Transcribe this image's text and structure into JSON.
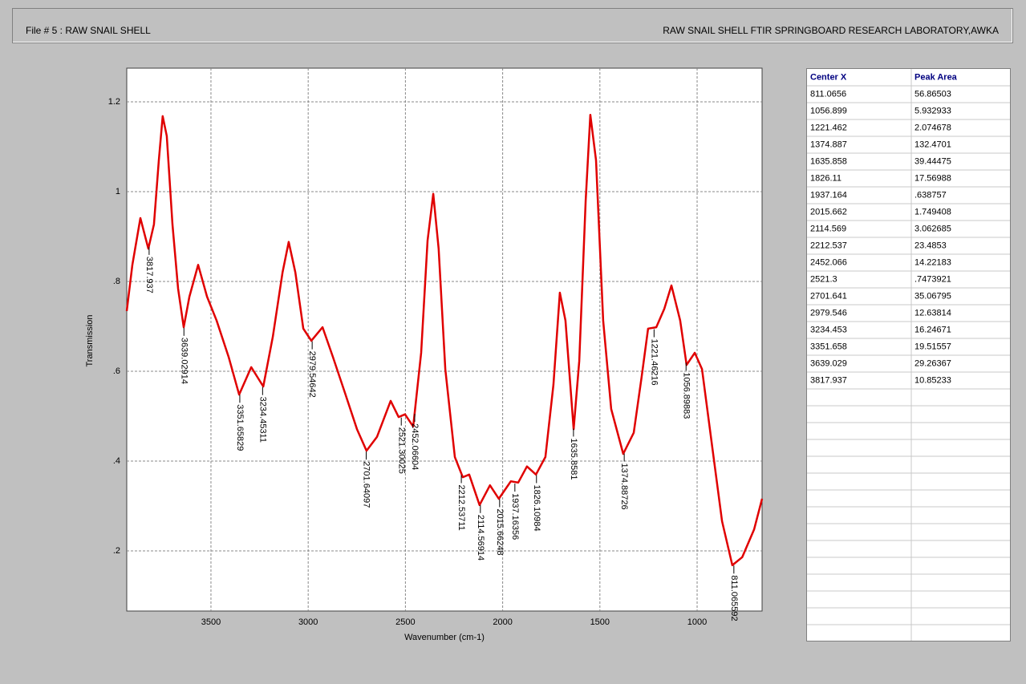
{
  "header": {
    "left": "File # 5 : RAW SNAIL SHELL",
    "right": "RAW SNAIL SHELL FTIR SPRINGBOARD RESEARCH LABORATORY,AWKA"
  },
  "chart_data": {
    "type": "line",
    "x_label": "Wavenumber (cm-1)",
    "y_label": "Transmission",
    "x": [
      3933,
      3904,
      3863,
      3822,
      3793,
      3768,
      3748,
      3727,
      3698,
      3669,
      3640,
      3611,
      3566,
      3520,
      3471,
      3409,
      3355,
      3293,
      3231,
      3182,
      3132,
      3100,
      3066,
      3025,
      2984,
      2926,
      2873,
      2811,
      2749,
      2700,
      2646,
      2576,
      2535,
      2502,
      2460,
      2419,
      2386,
      2357,
      2329,
      2295,
      2246,
      2205,
      2172,
      2119,
      2065,
      2020,
      1958,
      1920,
      1875,
      1829,
      1780,
      1739,
      1706,
      1677,
      1635,
      1606,
      1573,
      1549,
      1520,
      1483,
      1442,
      1380,
      1326,
      1285,
      1252,
      1210,
      1169,
      1132,
      1087,
      1054,
      1012,
      975,
      921,
      872,
      819,
      768,
      707,
      666
    ],
    "series": [
      {
        "color": "#e00000",
        "values": [
          0.734,
          0.837,
          0.941,
          0.873,
          0.927,
          1.07,
          1.168,
          1.124,
          0.927,
          0.784,
          0.698,
          0.766,
          0.837,
          0.766,
          0.713,
          0.632,
          0.548,
          0.609,
          0.566,
          0.677,
          0.82,
          0.888,
          0.82,
          0.695,
          0.668,
          0.698,
          0.632,
          0.552,
          0.471,
          0.423,
          0.454,
          0.534,
          0.498,
          0.504,
          0.477,
          0.641,
          0.891,
          0.995,
          0.873,
          0.605,
          0.409,
          0.364,
          0.37,
          0.302,
          0.346,
          0.316,
          0.355,
          0.352,
          0.388,
          0.37,
          0.409,
          0.57,
          0.775,
          0.713,
          0.471,
          0.623,
          0.98,
          1.171,
          1.07,
          0.713,
          0.516,
          0.416,
          0.463,
          0.588,
          0.695,
          0.698,
          0.739,
          0.791,
          0.713,
          0.614,
          0.641,
          0.605,
          0.427,
          0.266,
          0.168,
          0.186,
          0.248,
          0.316
        ]
      }
    ],
    "xlim": [
      3933,
      666
    ],
    "ylim": [
      0.066,
      1.275
    ],
    "xticks": [
      3500,
      3000,
      2500,
      2000,
      1500,
      1000
    ],
    "yticks": [
      1.2,
      1,
      {
        "value": 0.8,
        "label": ".8"
      },
      {
        "value": 0.6,
        "label": ".6"
      },
      {
        "value": 0.4,
        "label": ".4"
      },
      {
        "value": 0.2,
        "label": ".2"
      }
    ],
    "grid": true,
    "peak_labels": [
      3817.937,
      3639.02914,
      3351.65829,
      3234.45311,
      2979.54642,
      2701.64097,
      2521.30025,
      2452.06604,
      2212.53711,
      2114.56914,
      2015.66248,
      1937.16356,
      1826.10984,
      1635.8581,
      1374.88726,
      1221.46216,
      1056.89883,
      811.065592
    ]
  },
  "table": {
    "columns": [
      "Center X",
      "Peak Area"
    ],
    "rows": [
      [
        "811.0656",
        "56.86503"
      ],
      [
        "1056.899",
        "5.932933"
      ],
      [
        "1221.462",
        "2.074678"
      ],
      [
        "1374.887",
        "132.4701"
      ],
      [
        "1635.858",
        "39.44475"
      ],
      [
        "1826.11",
        "17.56988"
      ],
      [
        "1937.164",
        ".638757"
      ],
      [
        "2015.662",
        "1.749408"
      ],
      [
        "2114.569",
        "3.062685"
      ],
      [
        "2212.537",
        "23.4853"
      ],
      [
        "2452.066",
        "14.22183"
      ],
      [
        "2521.3",
        ".7473921"
      ],
      [
        "2701.641",
        "35.06795"
      ],
      [
        "2979.546",
        "12.63814"
      ],
      [
        "3234.453",
        "16.24671"
      ],
      [
        "3351.658",
        "19.51557"
      ],
      [
        "3639.029",
        "29.26367"
      ],
      [
        "3817.937",
        "10.85233"
      ]
    ]
  }
}
